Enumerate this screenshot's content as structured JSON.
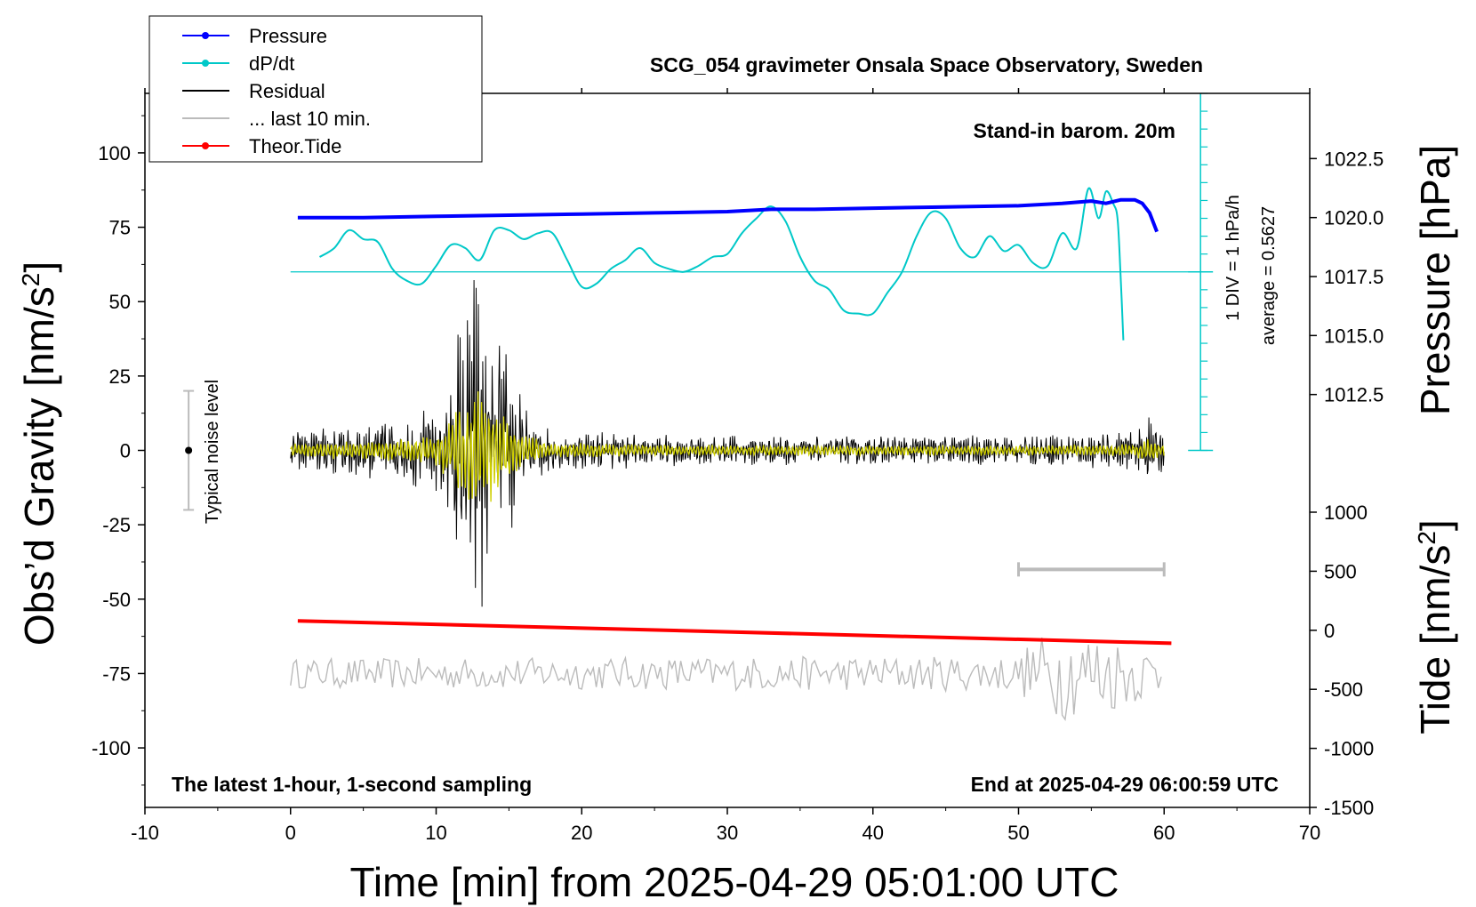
{
  "chart_data": {
    "type": "line",
    "title": "SCG_054 gravimeter Onsala Space Observatory, Sweden",
    "xlabel": "Time [min] from 2025-04-29 05:01:00 UTC",
    "ylabel_left": "Obs’d Gravity [nm/s",
    "ylabel_left_sup": "2",
    "ylabel_left_end": "]",
    "ylabel_right_pressure": "Pressure [hPa]",
    "ylabel_right_tide": "Tide [nm/s",
    "ylabel_right_tide_sup": "2",
    "ylabel_right_tide_end": "]",
    "xlim": [
      -10,
      70
    ],
    "ylim_left": [
      -120,
      120
    ],
    "x_ticks": [
      -10,
      0,
      10,
      20,
      30,
      40,
      50,
      60,
      70
    ],
    "x_tick_labels": [
      "-10",
      "0",
      "10",
      "20",
      "30",
      "40",
      "50",
      "60",
      "70"
    ],
    "y_ticks_left": [
      -100,
      -75,
      -50,
      -25,
      0,
      25,
      50,
      75,
      100
    ],
    "y_tick_labels_left": [
      "-100",
      "-75",
      "-50",
      "-25",
      "0",
      "25",
      "50",
      "75",
      "100"
    ],
    "pressure_axis": {
      "ticks": [
        1012.5,
        1015.0,
        1017.5,
        1020.0,
        1022.5
      ],
      "labels": [
        "1012.5",
        "1015.0",
        "1017.5",
        "1020.0",
        "1022.5"
      ],
      "range": [
        1010.0,
        1025.0
      ]
    },
    "tide_axis": {
      "ticks": [
        -1500,
        -1000,
        -500,
        0,
        500,
        1000
      ],
      "labels": [
        "-1500",
        "-1000",
        "-500",
        "0",
        "500",
        "1000"
      ],
      "range": [
        -1500,
        1000
      ]
    },
    "legend": {
      "placement": "top-left",
      "entries": [
        {
          "label": "Pressure",
          "color": "#0000ff",
          "marker": true
        },
        {
          "label": "dP/dt",
          "color": "#00c8c8",
          "marker": true
        },
        {
          "label": "Residual",
          "color": "#000000",
          "marker": false
        },
        {
          "label": "... last 10 min.",
          "color": "#bbbbbb",
          "marker": false
        },
        {
          "label": "Theor.Tide",
          "color": "#ff0000",
          "marker": true
        }
      ]
    },
    "annotations": {
      "barometer": "Stand-in barom. 20m",
      "dpdt_scale": "1 DIV = 1 hPa/h",
      "dpdt_average": "average = 0.5627",
      "noise": "Typical noise level",
      "sampling": "The latest 1-hour, 1-second sampling",
      "end_time": "End at 2025-04-29 06:00:59 UTC"
    },
    "noise_bar": {
      "x": -7,
      "center": 0,
      "half_range": 20
    },
    "last10_bar": {
      "x_start": 50,
      "x_end": 60,
      "y": -40
    },
    "dpdt_baseline": 60,
    "dpdt_scale_axis": {
      "x": 62.5,
      "y_top": 120,
      "y_bottom": 0,
      "tick_spacing": 6
    },
    "series": [
      {
        "name": "Pressure",
        "color": "#0000ff",
        "axis": "pressure",
        "x": [
          0.5,
          5,
          10,
          15,
          20,
          25,
          30,
          33,
          36,
          40,
          45,
          50,
          53,
          55,
          56,
          57,
          58,
          58.5,
          59,
          59.5
        ],
        "values": [
          1020.0,
          1020.0,
          1020.05,
          1020.1,
          1020.15,
          1020.2,
          1020.25,
          1020.35,
          1020.35,
          1020.4,
          1020.45,
          1020.5,
          1020.6,
          1020.7,
          1020.6,
          1020.75,
          1020.75,
          1020.6,
          1020.2,
          1019.4
        ]
      },
      {
        "name": "dP/dt",
        "color": "#00c8c8",
        "axis": "left",
        "x": [
          2,
          3,
          4,
          5,
          6,
          7,
          8,
          9,
          10,
          11,
          12,
          13,
          14,
          15,
          16,
          17,
          18,
          19,
          20,
          21,
          22,
          23,
          24,
          25,
          26,
          27,
          28,
          29,
          30,
          31,
          32,
          33,
          34,
          35,
          36,
          37,
          38,
          39,
          40,
          41,
          42,
          43,
          44,
          45,
          46,
          47,
          48,
          49,
          50,
          51,
          52,
          53,
          54,
          54.8,
          55.5,
          56,
          56.5,
          56.8,
          57.0,
          57.2
        ],
        "values": [
          65,
          68,
          74,
          71,
          70,
          61,
          57,
          56,
          62,
          69,
          68,
          64,
          74,
          74,
          71,
          73,
          73,
          64,
          55,
          56,
          61,
          64,
          68,
          63,
          61,
          60,
          62,
          65,
          66,
          73,
          78,
          82,
          77,
          65,
          57,
          54,
          47,
          46,
          46,
          53,
          60,
          72,
          80,
          78,
          68,
          65,
          72,
          67,
          69,
          63,
          62,
          73,
          68,
          88,
          78,
          87,
          83,
          78,
          60,
          37
        ]
      },
      {
        "name": "Residual",
        "color": "#000000",
        "axis": "left",
        "x": [
          0,
          60
        ],
        "values": [
          0,
          0
        ],
        "envelope": {
          "x": [
            0,
            4,
            8,
            10,
            11,
            12,
            13,
            14,
            15,
            16,
            18,
            22,
            30,
            40,
            50,
            58,
            59,
            60
          ],
          "amplitude": [
            5,
            7,
            9,
            12,
            25,
            40,
            52,
            38,
            24,
            13,
            6,
            5,
            4,
            4,
            4,
            5,
            9,
            5
          ]
        }
      },
      {
        "name": "Residual (smoothed)",
        "color": "#cfcf00",
        "axis": "left",
        "x": [
          0,
          60
        ],
        "values": [
          0,
          0
        ]
      },
      {
        "name": "... last 10 min.",
        "color": "#bbbbbb",
        "axis": "left",
        "x": [
          0,
          60
        ],
        "values": [
          -75,
          -75
        ],
        "envelope": {
          "x": [
            0,
            50,
            51,
            52,
            53,
            54,
            55,
            56,
            57,
            58,
            59,
            60
          ],
          "amplitude": [
            5,
            6,
            12,
            14,
            16,
            14,
            15,
            14,
            12,
            10,
            9,
            8
          ]
        }
      },
      {
        "name": "Theor.Tide",
        "color": "#ff0000",
        "axis": "tide",
        "x": [
          0.5,
          60.5
        ],
        "values": [
          80,
          -110
        ]
      }
    ]
  }
}
